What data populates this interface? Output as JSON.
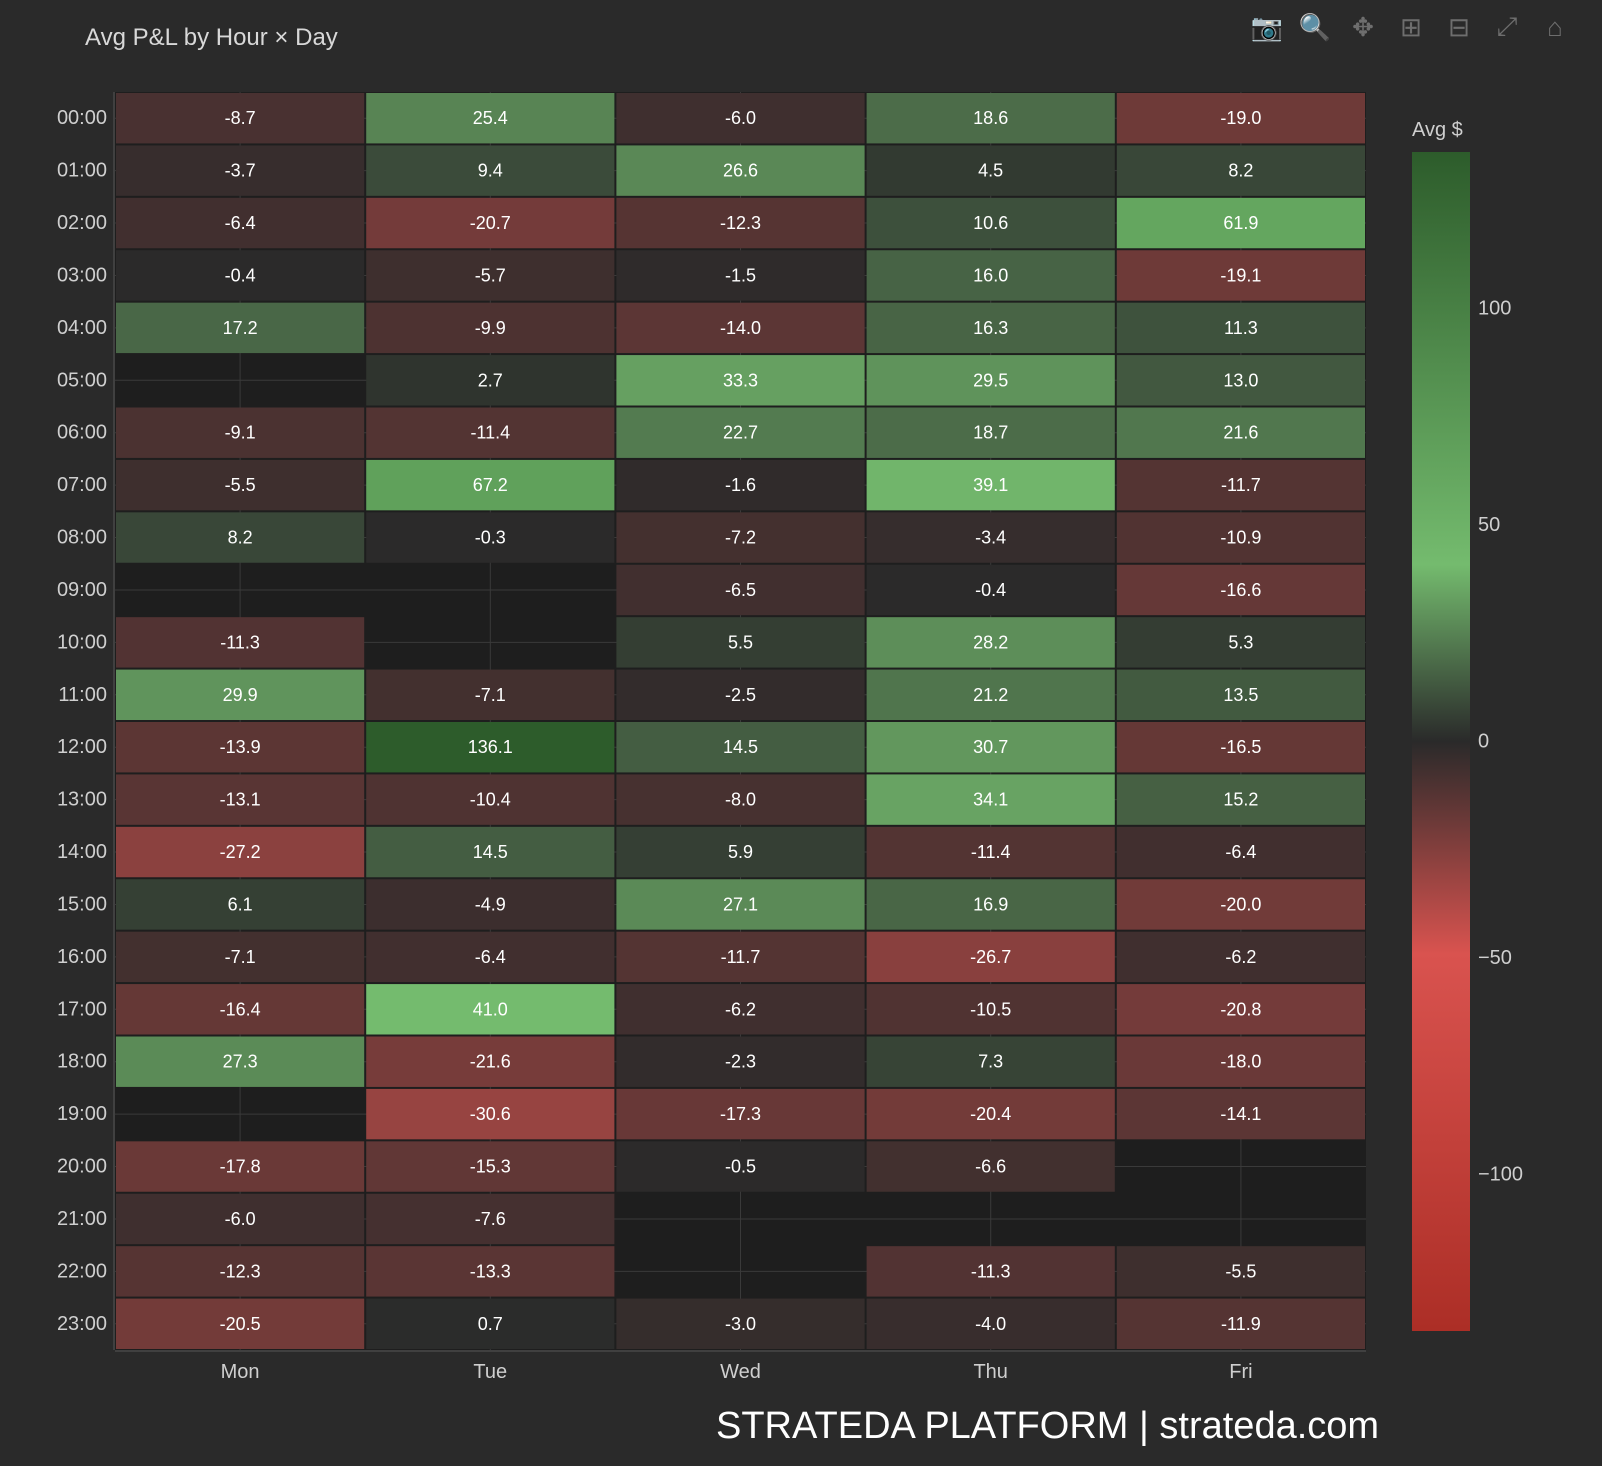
{
  "toolbar": {
    "icons": [
      "camera-icon",
      "zoom-box-icon",
      "pan-icon",
      "zoom-in-icon",
      "zoom-out-icon",
      "autoscale-icon",
      "home-icon"
    ],
    "active": "zoom-box-icon"
  },
  "watermark": "STRATEDA PLATFORM | strateda.com",
  "chart_data": {
    "type": "heatmap",
    "title": "Avg P&L by Hour × Day",
    "x": [
      "Mon",
      "Tue",
      "Wed",
      "Thu",
      "Fri"
    ],
    "y": [
      "00:00",
      "01:00",
      "02:00",
      "03:00",
      "04:00",
      "05:00",
      "06:00",
      "07:00",
      "08:00",
      "09:00",
      "10:00",
      "11:00",
      "12:00",
      "13:00",
      "14:00",
      "15:00",
      "16:00",
      "17:00",
      "18:00",
      "19:00",
      "20:00",
      "21:00",
      "22:00",
      "23:00"
    ],
    "z": [
      [
        -8.7,
        25.4,
        -6.0,
        18.6,
        -19.0
      ],
      [
        -3.7,
        9.4,
        26.6,
        4.5,
        8.2
      ],
      [
        -6.4,
        -20.7,
        -12.3,
        10.6,
        61.9
      ],
      [
        -0.4,
        -5.7,
        -1.5,
        16.0,
        -19.1
      ],
      [
        17.2,
        -9.9,
        -14.0,
        16.3,
        11.3
      ],
      [
        null,
        2.7,
        33.3,
        29.5,
        13.0
      ],
      [
        -9.1,
        -11.4,
        22.7,
        18.7,
        21.6
      ],
      [
        -5.5,
        67.2,
        -1.6,
        39.1,
        -11.7
      ],
      [
        8.2,
        -0.3,
        -7.2,
        -3.4,
        -10.9
      ],
      [
        null,
        null,
        -6.5,
        -0.4,
        -16.6
      ],
      [
        -11.3,
        null,
        5.5,
        28.2,
        5.3
      ],
      [
        29.9,
        -7.1,
        -2.5,
        21.2,
        13.5
      ],
      [
        -13.9,
        136.1,
        14.5,
        30.7,
        -16.5
      ],
      [
        -13.1,
        -10.4,
        -8.0,
        34.1,
        15.2
      ],
      [
        -27.2,
        14.5,
        5.9,
        -11.4,
        -6.4
      ],
      [
        6.1,
        -4.9,
        27.1,
        16.9,
        -20.0
      ],
      [
        -7.1,
        -6.4,
        -11.7,
        -26.7,
        -6.2
      ],
      [
        -16.4,
        41.0,
        -6.2,
        -10.5,
        -20.8
      ],
      [
        27.3,
        -21.6,
        -2.3,
        7.3,
        -18.0
      ],
      [
        null,
        -30.6,
        -17.3,
        -20.4,
        -14.1
      ],
      [
        -17.8,
        -15.3,
        -0.5,
        -6.6,
        null
      ],
      [
        -6.0,
        -7.6,
        null,
        null,
        null
      ],
      [
        -12.3,
        -13.3,
        null,
        -11.3,
        -5.5
      ],
      [
        -20.5,
        0.7,
        -3.0,
        -4.0,
        -11.9
      ]
    ],
    "zrange": [
      -136.1,
      136.1
    ],
    "colorbar": {
      "title": "Avg $",
      "ticks": [
        100,
        50,
        0,
        -50,
        -100
      ],
      "tick_labels": [
        "100",
        "50",
        "0",
        "−50",
        "−100"
      ]
    },
    "colorscale": [
      [
        0,
        "#ac2e26"
      ],
      [
        0.32,
        "#d9534f"
      ],
      [
        0.5,
        "#2a2a2a"
      ],
      [
        0.65,
        "#74bb6e"
      ],
      [
        1,
        "#2d5c2b"
      ]
    ],
    "text_format": "one decimal"
  }
}
